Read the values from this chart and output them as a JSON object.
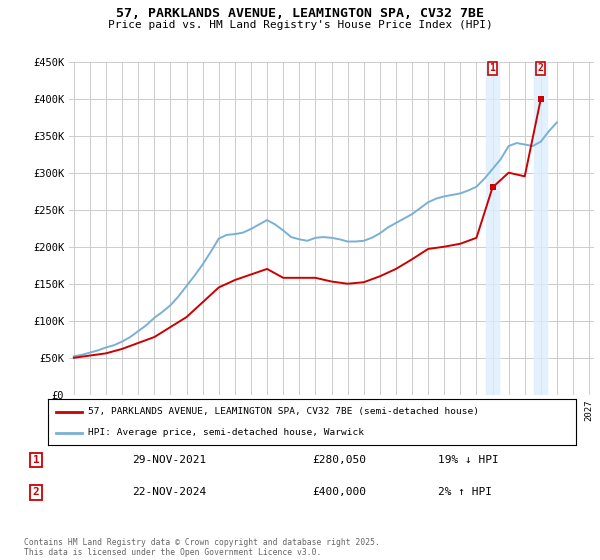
{
  "title": "57, PARKLANDS AVENUE, LEAMINGTON SPA, CV32 7BE",
  "subtitle": "Price paid vs. HM Land Registry's House Price Index (HPI)",
  "red_label": "57, PARKLANDS AVENUE, LEAMINGTON SPA, CV32 7BE (semi-detached house)",
  "blue_label": "HPI: Average price, semi-detached house, Warwick",
  "footer": "Contains HM Land Registry data © Crown copyright and database right 2025.\nThis data is licensed under the Open Government Licence v3.0.",
  "annotation1": {
    "label": "1",
    "date": "29-NOV-2021",
    "price": "£280,050",
    "hpi": "19% ↓ HPI"
  },
  "annotation2": {
    "label": "2",
    "date": "22-NOV-2024",
    "price": "£400,000",
    "hpi": "2% ↑ HPI"
  },
  "ylim": [
    0,
    450000
  ],
  "yticks": [
    0,
    50000,
    100000,
    150000,
    200000,
    250000,
    300000,
    350000,
    400000,
    450000
  ],
  "ytick_labels": [
    "£0",
    "£50K",
    "£100K",
    "£150K",
    "£200K",
    "£250K",
    "£300K",
    "£350K",
    "£400K",
    "£450K"
  ],
  "xlim_start": 1995,
  "xlim_end": 2027,
  "red_color": "#cc0000",
  "blue_color": "#7ab0d4",
  "annotation_box_color": "#cc0000",
  "shaded_color": "#ddeeff",
  "background_color": "#ffffff",
  "grid_color": "#cccccc",
  "hpi_x": [
    1995,
    1995.5,
    1996,
    1996.5,
    1997,
    1997.5,
    1998,
    1998.5,
    1999,
    1999.5,
    2000,
    2000.5,
    2001,
    2001.5,
    2002,
    2002.5,
    2003,
    2003.5,
    2004,
    2004.5,
    2005,
    2005.5,
    2006,
    2006.5,
    2007,
    2007.5,
    2008,
    2008.5,
    2009,
    2009.5,
    2010,
    2010.5,
    2011,
    2011.5,
    2012,
    2012.5,
    2013,
    2013.5,
    2014,
    2014.5,
    2015,
    2015.5,
    2016,
    2016.5,
    2017,
    2017.5,
    2018,
    2018.5,
    2019,
    2019.5,
    2020,
    2020.5,
    2021,
    2021.5,
    2022,
    2022.5,
    2023,
    2023.5,
    2024,
    2024.5,
    2025
  ],
  "hpi_y": [
    52000,
    54000,
    57000,
    60000,
    64000,
    67000,
    72000,
    78000,
    86000,
    94000,
    104000,
    112000,
    121000,
    133000,
    147000,
    161000,
    176000,
    193000,
    211000,
    216000,
    217000,
    219000,
    224000,
    230000,
    236000,
    230000,
    222000,
    213000,
    210000,
    208000,
    212000,
    213000,
    212000,
    210000,
    207000,
    207000,
    208000,
    212000,
    218000,
    226000,
    232000,
    238000,
    244000,
    252000,
    260000,
    265000,
    268000,
    270000,
    272000,
    276000,
    281000,
    292000,
    305000,
    318000,
    336000,
    340000,
    338000,
    336000,
    342000,
    356000,
    368000
  ],
  "red_x": [
    1995,
    1997,
    1998,
    2000,
    2002,
    2004,
    2005,
    2007,
    2008,
    2010,
    2011,
    2012,
    2013,
    2014,
    2015,
    2016,
    2017,
    2018,
    2019,
    2020,
    2021,
    2022,
    2023,
    2024
  ],
  "red_y": [
    50000,
    56000,
    62000,
    78000,
    105000,
    145000,
    155000,
    170000,
    158000,
    158000,
    153000,
    150000,
    152000,
    160000,
    170000,
    183000,
    197000,
    200000,
    204000,
    212000,
    280050,
    300000,
    295000,
    400000
  ],
  "ann1_x": 2021,
  "ann1_y": 280050,
  "ann2_x": 2024,
  "ann2_y": 400000
}
